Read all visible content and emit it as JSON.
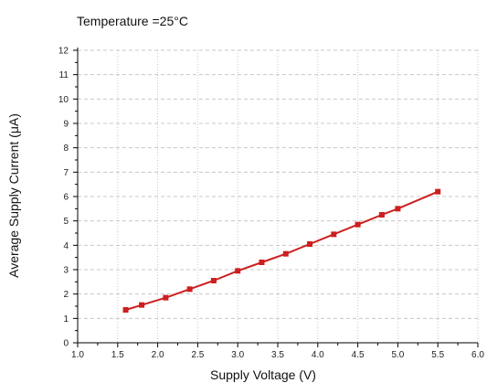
{
  "chart_data": {
    "type": "line",
    "title": "Temperature =25°C",
    "xlabel": "Supply Voltage (V)",
    "ylabel": "Average Supply Current (μA)",
    "xlim": [
      1.0,
      6.0
    ],
    "ylim": [
      0,
      12
    ],
    "x_ticks": [
      "1.0",
      "1.5",
      "2.0",
      "2.5",
      "3.0",
      "3.5",
      "4.0",
      "4.5",
      "5.0",
      "5.5",
      "6.0"
    ],
    "y_ticks": [
      "0",
      "1",
      "2",
      "3",
      "4",
      "5",
      "6",
      "7",
      "8",
      "9",
      "10",
      "11",
      "12"
    ],
    "grid": true,
    "series": [
      {
        "color": "#cc1f1f",
        "marker": "square",
        "x": [
          1.6,
          1.8,
          2.1,
          2.4,
          2.7,
          3.0,
          3.3,
          3.6,
          3.9,
          4.2,
          4.5,
          4.8,
          5.0,
          5.5
        ],
        "y": [
          1.35,
          1.55,
          1.85,
          2.2,
          2.55,
          2.95,
          3.3,
          3.65,
          4.05,
          4.45,
          4.85,
          5.25,
          5.5,
          6.2
        ]
      }
    ]
  }
}
